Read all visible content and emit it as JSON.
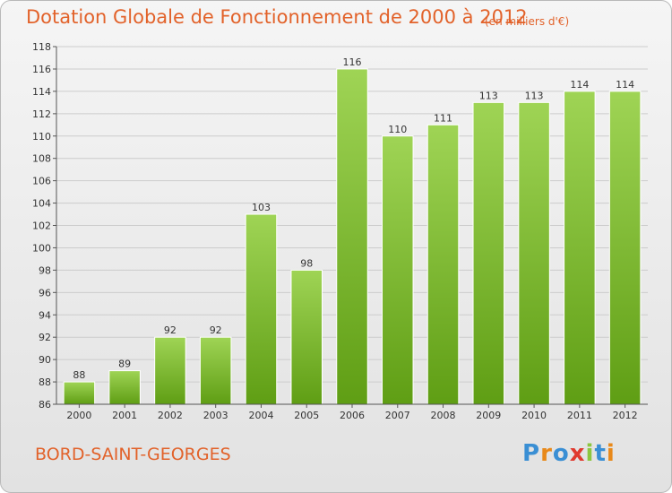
{
  "title": "Dotation Globale de Fonctionnement de 2000 à 2012",
  "unit": "(en milliers d'€)",
  "commune": "BORD-SAINT-GEORGES",
  "logo": {
    "text": "Proxiti",
    "letter_colors": [
      "#3a8fd4",
      "#e8891a",
      "#3a8fd4",
      "#e03a2f",
      "#8cc63f",
      "#3a8fd4",
      "#e8891a"
    ]
  },
  "colors": {
    "title": "#e2622a",
    "bar_top": "#9fd455",
    "bar_bottom": "#5f9e14",
    "grid": "#cccccc",
    "axis": "#555555"
  },
  "chart_data": {
    "type": "bar",
    "categories": [
      "2000",
      "2001",
      "2002",
      "2003",
      "2004",
      "2005",
      "2006",
      "2007",
      "2008",
      "2009",
      "2010",
      "2011",
      "2012"
    ],
    "values": [
      88,
      89,
      92,
      92,
      103,
      98,
      116,
      110,
      111,
      113,
      113,
      114,
      114
    ],
    "data_labels": [
      "88",
      "89",
      "92",
      "92",
      "103",
      "98",
      "116",
      "110",
      "111",
      "113",
      "113",
      "114",
      "114"
    ],
    "title": "Dotation Globale de Fonctionnement de 2000 à 2012",
    "ylim": [
      86,
      118
    ],
    "yticks": [
      86,
      88,
      90,
      92,
      94,
      96,
      98,
      100,
      102,
      104,
      106,
      108,
      110,
      112,
      114,
      116,
      118
    ],
    "grid": true,
    "legend": "none"
  }
}
